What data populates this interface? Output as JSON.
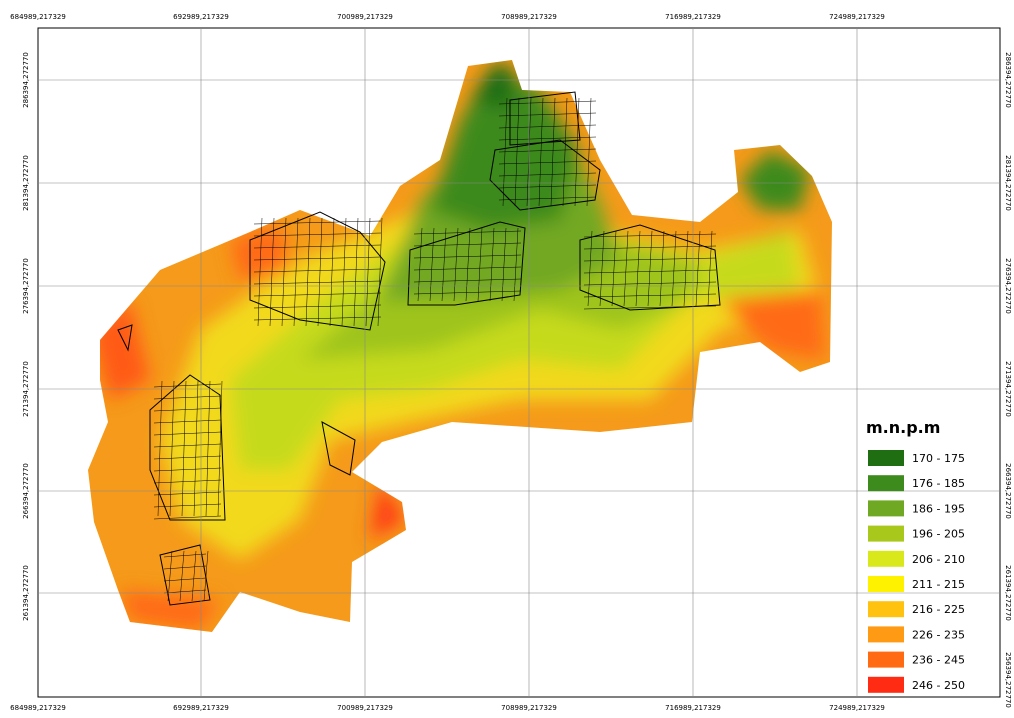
{
  "map": {
    "top_labels": [
      "684989,217329",
      "692989,217329",
      "700989,217329",
      "708989,217329",
      "716989,217329",
      "724989,217329"
    ],
    "bottom_labels": [
      "684989,217329",
      "692989,217329",
      "700989,217329",
      "708989,217329",
      "716989,217329",
      "724989,217329"
    ],
    "left_labels": [
      "286394,272770",
      "281394,272770",
      "276394,272770",
      "271394,272770",
      "266394,272770",
      "261394,272770"
    ],
    "right_labels": [
      "286394,272770",
      "281394,272770",
      "276394,272770",
      "271394,272770",
      "266394,272770",
      "261394,272770",
      "256394,272770"
    ],
    "legend": {
      "title": "m.n.p.m",
      "entries": [
        {
          "label": "170 - 175",
          "color": "#1f6e12"
        },
        {
          "label": "176 - 185",
          "color": "#3d8a1d"
        },
        {
          "label": "186 - 195",
          "color": "#6fa823"
        },
        {
          "label": "196 - 205",
          "color": "#a8c81c"
        },
        {
          "label": "206 - 210",
          "color": "#d9e81a"
        },
        {
          "label": "211 - 215",
          "color": "#fff200"
        },
        {
          "label": "216 - 225",
          "color": "#ffc20e"
        },
        {
          "label": "226 - 235",
          "color": "#ff9a14"
        },
        {
          "label": "236 - 245",
          "color": "#ff6a12"
        },
        {
          "label": "246 - 250",
          "color": "#ff2b12"
        }
      ]
    }
  }
}
